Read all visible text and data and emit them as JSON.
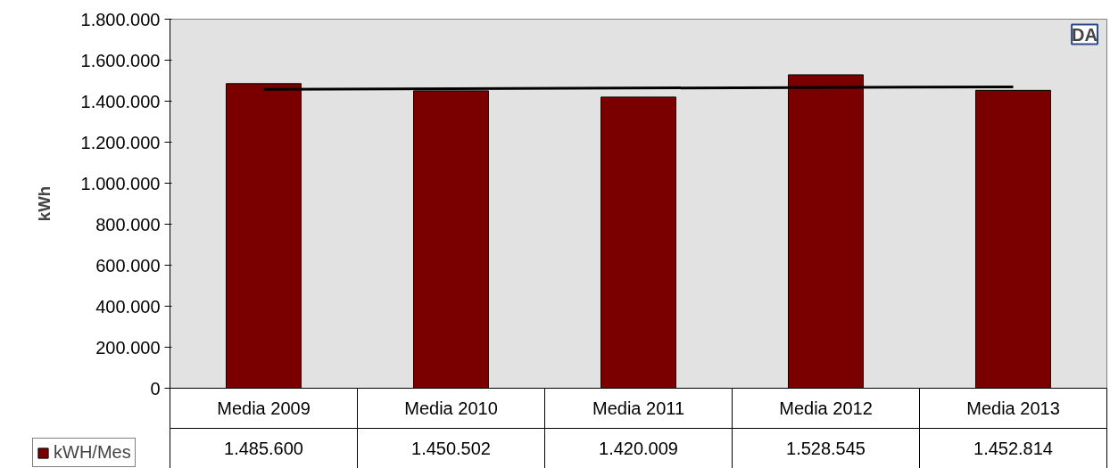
{
  "chart_data": {
    "type": "bar",
    "ylabel": "kWh",
    "categories": [
      "Media 2009",
      "Media 2010",
      "Media 2011",
      "Media 2012",
      "Media 2013"
    ],
    "series": [
      {
        "name": "kWH/Mes",
        "color": "#7a0000",
        "values": [
          1485600,
          1450502,
          1420009,
          1528545,
          1452814
        ],
        "value_labels": [
          "1.485.600",
          "1.450.502",
          "1.420.009",
          "1.528.545",
          "1.452.814"
        ]
      },
      {
        "type": "line",
        "color": "#000000",
        "x": [
          "Media 2009",
          "Media 2013"
        ],
        "values": [
          1458000,
          1470000
        ]
      }
    ],
    "ylim": [
      0,
      1800000
    ],
    "yticks": [
      {
        "value": 0,
        "label": "0"
      },
      {
        "value": 200000,
        "label": "200.000"
      },
      {
        "value": 400000,
        "label": "400.000"
      },
      {
        "value": 600000,
        "label": "600.000"
      },
      {
        "value": 800000,
        "label": "800.000"
      },
      {
        "value": 1000000,
        "label": "1.000.000"
      },
      {
        "value": 1200000,
        "label": "1.200.000"
      },
      {
        "value": 1400000,
        "label": "1.400.000"
      },
      {
        "value": 1600000,
        "label": "1.600.000"
      },
      {
        "value": 1800000,
        "label": "1.800.000"
      }
    ],
    "grid": false,
    "legend": "bottom left",
    "annotations": [
      "DA"
    ]
  }
}
